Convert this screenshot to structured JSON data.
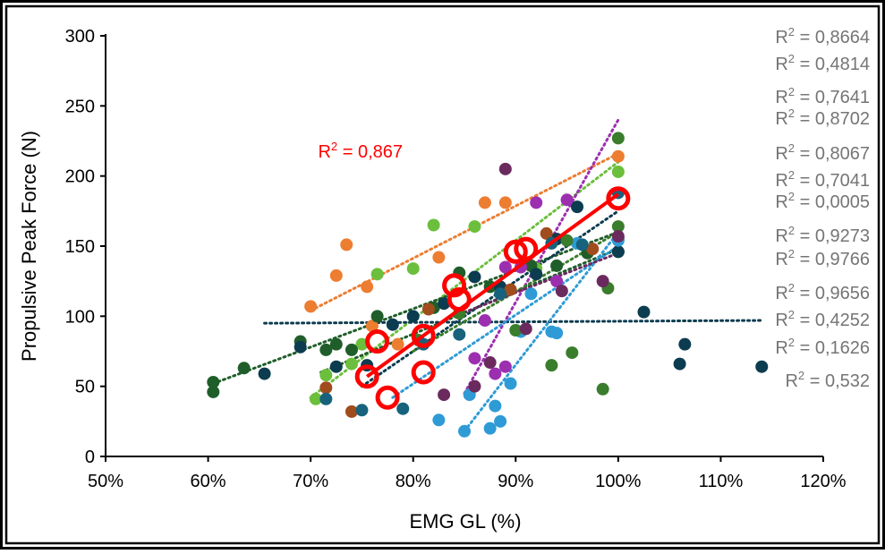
{
  "chart_data": {
    "type": "scatter",
    "xlabel": "EMG GL (%)",
    "ylabel": "Propulsive Peak Force (N)",
    "xlim": [
      50,
      120
    ],
    "ylim": [
      0,
      300
    ],
    "x_ticks": [
      "50%",
      "60%",
      "70%",
      "80%",
      "90%",
      "100%",
      "110%",
      "120%"
    ],
    "y_ticks": [
      "0",
      "50",
      "100",
      "150",
      "200",
      "250",
      "300"
    ],
    "grid": false,
    "legend": "none",
    "colors": {
      "frame": "#000000",
      "red": "#ff0000",
      "r2_gray": "#757575",
      "orange": "#ed7d31",
      "lightgreen": "#6bbf3c",
      "darkgreen": "#1f5e2a",
      "navy": "#0c3c50",
      "purple": "#9c2fb0",
      "sky": "#2e9bd6",
      "brown": "#a14c1d",
      "olive": "#3a7d2c",
      "plum": "#6b2a5e",
      "teal": "#17627c"
    },
    "r2_labels": [
      "R² = 0,8664",
      "R² = 0,4814",
      "R² = 0,7641",
      "R² = 0,8702",
      "R² = 0,8067",
      "R² = 0,7041",
      "R² = 0,0005",
      "R² = 0,9273",
      "R² = 0,9766",
      "R² = 0,9656",
      "R² = 0,4252",
      "R² = 0,1626",
      "R² = 0,532"
    ],
    "red_r2_label": "R² = 0,867",
    "red_trend": {
      "x": [
        75.5,
        100
      ],
      "y": [
        57,
        187
      ]
    },
    "red_circles": [
      {
        "x": 75.5,
        "y": 57
      },
      {
        "x": 76.5,
        "y": 82
      },
      {
        "x": 77.5,
        "y": 42
      },
      {
        "x": 81,
        "y": 86
      },
      {
        "x": 81,
        "y": 60
      },
      {
        "x": 84,
        "y": 122
      },
      {
        "x": 84.5,
        "y": 112
      },
      {
        "x": 90,
        "y": 146
      },
      {
        "x": 91,
        "y": 148
      },
      {
        "x": 100,
        "y": 184
      }
    ],
    "trendlines": [
      {
        "color": "orange",
        "x": [
          70,
          100
        ],
        "y": [
          104,
          216
        ]
      },
      {
        "color": "lightgreen",
        "x": [
          70,
          100
        ],
        "y": [
          42,
          210
        ]
      },
      {
        "color": "darkgreen",
        "x": [
          60.5,
          100
        ],
        "y": [
          52,
          160
        ]
      },
      {
        "color": "darkgreen",
        "x": [
          71,
          100
        ],
        "y": [
          60,
          148
        ]
      },
      {
        "color": "navy",
        "x": [
          65.5,
          114
        ],
        "y": [
          95,
          97
        ]
      },
      {
        "color": "navy",
        "x": [
          75,
          100
        ],
        "y": [
          50,
          175
        ]
      },
      {
        "color": "purple",
        "x": [
          85,
          100
        ],
        "y": [
          45,
          240
        ]
      },
      {
        "color": "sky",
        "x": [
          85,
          100
        ],
        "y": [
          18,
          160
        ]
      },
      {
        "color": "sky",
        "x": [
          78,
          100
        ],
        "y": [
          42,
          150
        ]
      },
      {
        "color": "olive",
        "x": [
          80,
          100
        ],
        "y": [
          75,
          160
        ]
      },
      {
        "color": "plum",
        "x": [
          84,
          100
        ],
        "y": [
          100,
          145
        ]
      }
    ],
    "series": [
      {
        "color": "orange",
        "points": [
          [
            70,
            107
          ],
          [
            72.5,
            129
          ],
          [
            73.5,
            151
          ],
          [
            75.5,
            121
          ],
          [
            76,
            93
          ],
          [
            78.5,
            80
          ],
          [
            82.5,
            142
          ],
          [
            87,
            181
          ],
          [
            89,
            181
          ],
          [
            100,
            214
          ]
        ]
      },
      {
        "color": "lightgreen",
        "points": [
          [
            70.5,
            41
          ],
          [
            71.5,
            58
          ],
          [
            74,
            66
          ],
          [
            75,
            80
          ],
          [
            76.5,
            130
          ],
          [
            80,
            134
          ],
          [
            82,
            165
          ],
          [
            86,
            164
          ],
          [
            92,
            134
          ],
          [
            100,
            203
          ]
        ]
      },
      {
        "color": "darkgreen",
        "points": [
          [
            60.5,
            46
          ],
          [
            60.5,
            53
          ],
          [
            63.5,
            63
          ],
          [
            69,
            82
          ],
          [
            71.5,
            76
          ],
          [
            72.5,
            80
          ],
          [
            74,
            76
          ],
          [
            76.5,
            100
          ],
          [
            82,
            106
          ],
          [
            84.5,
            131
          ],
          [
            87.5,
            121
          ],
          [
            91.5,
            136
          ],
          [
            94,
            136
          ],
          [
            97,
            145
          ],
          [
            100,
            146
          ]
        ]
      },
      {
        "color": "navy",
        "points": [
          [
            65.5,
            59
          ],
          [
            69,
            78
          ],
          [
            72.5,
            64
          ],
          [
            75.5,
            65
          ],
          [
            78,
            94
          ],
          [
            80,
            100
          ],
          [
            83,
            109
          ],
          [
            86,
            128
          ],
          [
            88.5,
            121
          ],
          [
            92,
            130
          ],
          [
            94,
            155
          ],
          [
            96,
            178
          ],
          [
            100,
            146
          ],
          [
            102.5,
            103
          ],
          [
            106.5,
            80
          ],
          [
            106,
            66
          ],
          [
            114,
            64
          ]
        ]
      },
      {
        "color": "purple",
        "points": [
          [
            86,
            70
          ],
          [
            87,
            97
          ],
          [
            88,
            59
          ],
          [
            89,
            135
          ],
          [
            89,
            64
          ],
          [
            90.5,
            135
          ],
          [
            92,
            181
          ],
          [
            94,
            125
          ],
          [
            95,
            183
          ],
          [
            100,
            155
          ]
        ]
      },
      {
        "color": "sky",
        "points": [
          [
            82.5,
            26
          ],
          [
            85,
            18
          ],
          [
            85.5,
            44
          ],
          [
            87.5,
            20
          ],
          [
            88,
            36
          ],
          [
            88.5,
            25
          ],
          [
            89.5,
            52
          ],
          [
            90.5,
            89
          ],
          [
            91.5,
            116
          ],
          [
            93.5,
            89
          ],
          [
            94,
            88
          ],
          [
            96,
            152
          ],
          [
            100,
            154
          ]
        ]
      },
      {
        "color": "olive",
        "points": [
          [
            80.5,
            83
          ],
          [
            84.5,
            102
          ],
          [
            90,
            90
          ],
          [
            93.5,
            65
          ],
          [
            95,
            154
          ],
          [
            95.5,
            74
          ],
          [
            98.5,
            48
          ],
          [
            99,
            120
          ],
          [
            100,
            164
          ],
          [
            100,
            227
          ]
        ]
      },
      {
        "color": "plum",
        "points": [
          [
            83,
            44
          ],
          [
            86,
            50
          ],
          [
            87.5,
            67
          ],
          [
            89,
            205
          ],
          [
            91,
            91
          ],
          [
            94.5,
            118
          ],
          [
            98.5,
            125
          ],
          [
            100,
            157
          ]
        ]
      },
      {
        "color": "brown",
        "points": [
          [
            71.5,
            49
          ],
          [
            74,
            32
          ],
          [
            81.5,
            105
          ],
          [
            89.5,
            119
          ],
          [
            93,
            159
          ],
          [
            97.5,
            148
          ]
        ]
      },
      {
        "color": "teal",
        "points": [
          [
            71.5,
            41
          ],
          [
            75,
            33
          ],
          [
            79,
            34
          ],
          [
            81,
            80
          ],
          [
            84.5,
            87
          ],
          [
            88.5,
            116
          ],
          [
            93.5,
            152
          ],
          [
            96.5,
            151
          ],
          [
            100,
            188
          ]
        ]
      }
    ]
  }
}
